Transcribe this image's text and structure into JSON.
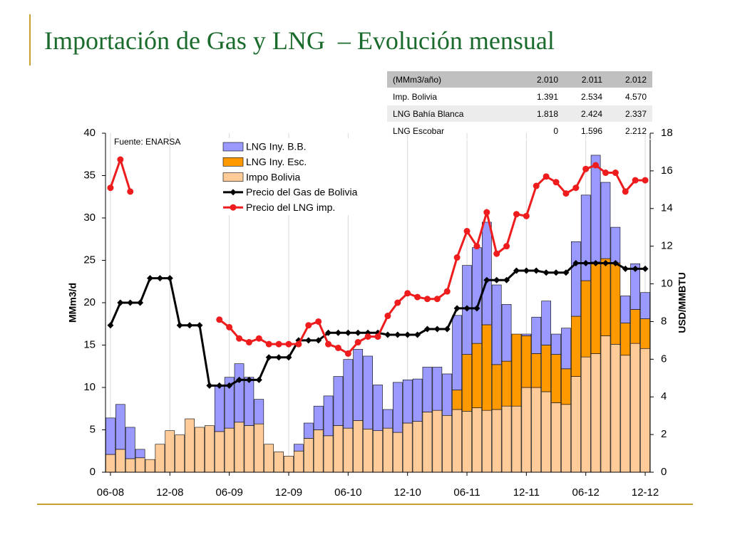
{
  "header": {
    "title": "Importación de Gas y LNG  – Evolución mensual"
  },
  "table": {
    "rows": [
      [
        "(MMm3/año)",
        "2.010",
        "2.011",
        "2.012"
      ],
      [
        "Imp. Bolivia",
        "1.391",
        "2.534",
        "4.570"
      ],
      [
        "LNG Bahía Blanca",
        "1.818",
        "2.424",
        "2.337"
      ],
      [
        "LNG Escobar",
        "0",
        "1.596",
        "2.212"
      ]
    ]
  },
  "chart_data": {
    "type": "bar",
    "source": "Fuente: ENARSA",
    "ylabel": "MMm3/d",
    "y2label": "USD/MMBTU",
    "categories": [
      "06-08",
      null,
      null,
      null,
      null,
      null,
      "12-08",
      null,
      null,
      null,
      null,
      null,
      "06-09",
      null,
      null,
      null,
      null,
      null,
      "12-09",
      null,
      null,
      null,
      null,
      null,
      "06-10",
      null,
      null,
      null,
      null,
      null,
      "12-10",
      null,
      null,
      null,
      null,
      null,
      "06-11",
      null,
      null,
      null,
      null,
      null,
      "12-11",
      null,
      null,
      null,
      null,
      null,
      "06-12",
      null,
      null,
      null,
      null,
      null,
      "12-12"
    ],
    "ylim": [
      0,
      40
    ],
    "yticks": [
      0,
      5,
      10,
      15,
      20,
      25,
      30,
      35,
      40
    ],
    "y2lim": [
      0,
      18
    ],
    "y2ticks": [
      0,
      2,
      4,
      6,
      8,
      10,
      12,
      14,
      16,
      18
    ],
    "grid": "x",
    "stacked": true,
    "series": [
      {
        "name": "LNG Iny. B.B.",
        "type": "bar",
        "color": "#9999ff",
        "values": [
          4.3,
          5.3,
          3.7,
          1.0,
          0,
          0,
          0,
          0,
          0,
          0,
          0,
          5.4,
          6.0,
          6.9,
          5.7,
          2.9,
          0,
          0,
          0,
          0.8,
          1.8,
          2.8,
          4.7,
          5.8,
          8.1,
          8.4,
          8.6,
          5.4,
          2.2,
          5.9,
          5.1,
          5.0,
          5.3,
          5.1,
          4.9,
          8.8,
          10.5,
          11.3,
          12.1,
          9.4,
          6.7,
          0,
          0.2,
          4.3,
          5.2,
          2.4,
          4.8,
          8.8,
          10.1,
          12.6,
          9.0,
          4.2,
          3.2,
          5.4,
          3.1
        ]
      },
      {
        "name": "LNG Iny. Esc.",
        "type": "bar",
        "color": "#ff9900",
        "values": [
          0,
          0,
          0,
          0,
          0,
          0,
          0,
          0,
          0,
          0,
          0,
          0,
          0,
          0,
          0,
          0,
          0,
          0,
          0,
          0,
          0,
          0,
          0,
          0,
          0,
          0,
          0,
          0,
          0,
          0,
          0,
          0,
          0,
          0,
          0,
          2.3,
          6.7,
          7.6,
          10.1,
          5.3,
          5.3,
          8.5,
          6.1,
          4.0,
          5.5,
          5.7,
          4.2,
          7.1,
          9.0,
          10.8,
          9.1,
          9.6,
          3.8,
          4.0,
          3.5
        ]
      },
      {
        "name": "Impo Bolivia",
        "type": "bar",
        "color": "#ffcc99",
        "values": [
          2.1,
          2.7,
          1.6,
          1.7,
          1.5,
          3.3,
          4.9,
          4.4,
          6.3,
          5.3,
          5.5,
          4.8,
          5.2,
          5.9,
          5.5,
          5.7,
          3.3,
          2.4,
          1.9,
          2.5,
          4.0,
          5.0,
          4.3,
          5.5,
          5.2,
          6.1,
          5.1,
          4.9,
          5.2,
          4.7,
          5.8,
          6.0,
          7.1,
          7.3,
          6.7,
          7.4,
          7.2,
          7.6,
          7.3,
          7.4,
          7.8,
          7.8,
          10.0,
          10.0,
          9.5,
          8.2,
          8.0,
          11.3,
          13.6,
          14.0,
          16.1,
          15.1,
          13.8,
          15.2,
          14.6
        ]
      },
      {
        "name": "Precio del Gas de Bolivia",
        "type": "line",
        "axis": "y2",
        "color": "#000000",
        "marker": "diamond",
        "values": [
          7.8,
          9.0,
          9.0,
          9.0,
          10.3,
          10.3,
          10.3,
          7.8,
          7.8,
          7.8,
          4.6,
          4.6,
          4.6,
          4.9,
          4.9,
          4.9,
          6.1,
          6.1,
          6.1,
          7.0,
          7.0,
          7.0,
          7.4,
          7.4,
          7.4,
          7.4,
          7.4,
          7.4,
          7.3,
          7.3,
          7.3,
          7.3,
          7.6,
          7.6,
          7.6,
          8.7,
          8.7,
          8.7,
          10.2,
          10.2,
          10.2,
          10.7,
          10.7,
          10.7,
          10.6,
          10.6,
          10.6,
          11.1,
          11.1,
          11.1,
          11.1,
          11.1,
          10.8,
          10.8,
          10.8
        ]
      },
      {
        "name": "Precio del LNG imp.",
        "type": "line",
        "axis": "y2",
        "color": "#ee1c1c",
        "marker": "circle",
        "values": [
          15.1,
          16.6,
          14.9,
          null,
          null,
          null,
          null,
          null,
          null,
          null,
          null,
          8.1,
          7.7,
          7.1,
          6.9,
          7.1,
          6.8,
          6.8,
          6.8,
          6.8,
          7.8,
          8.0,
          6.8,
          6.6,
          6.3,
          6.9,
          7.2,
          7.2,
          8.3,
          9.0,
          9.5,
          9.3,
          9.2,
          9.2,
          9.6,
          11.4,
          12.8,
          12.0,
          13.8,
          11.6,
          12.0,
          13.7,
          13.6,
          15.2,
          15.7,
          15.4,
          14.8,
          15.1,
          16.1,
          16.3,
          15.9,
          15.9,
          14.9,
          15.5,
          15.5
        ]
      }
    ]
  }
}
